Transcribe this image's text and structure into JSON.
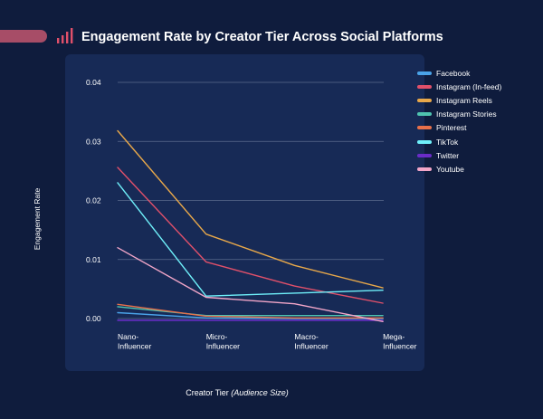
{
  "title": "Engagement Rate by Creator Tier Across Social Platforms",
  "chart_data": {
    "type": "line",
    "title": "Engagement Rate by Creator Tier Across Social Platforms",
    "xlabel": "Creator Tier",
    "xlabel_note": "(Audience Size)",
    "ylabel": "Engagement Rate",
    "categories": [
      "Nano-Influencer",
      "Micro-Influencer",
      "Macro-Influencer",
      "Mega-Influencer"
    ],
    "category_lines": [
      [
        "Nano-",
        "Influencer"
      ],
      [
        "Micro-",
        "Influencer"
      ],
      [
        "Macro-",
        "Influencer"
      ],
      [
        "Mega-",
        "Influencer"
      ]
    ],
    "ylim": [
      0,
      0.04
    ],
    "yticks": [
      0.0,
      0.01,
      0.02,
      0.03,
      0.04
    ],
    "ytick_labels": [
      "0.00",
      "0.01",
      "0.02",
      "0.03",
      "0.04"
    ],
    "grid": true,
    "legend_position": "right",
    "series": [
      {
        "name": "Facebook",
        "color": "#4aa3e8",
        "values": [
          0.001,
          0.0001,
          0.0,
          0.0
        ]
      },
      {
        "name": "Instagram (In-feed)",
        "color": "#e0506a",
        "values": [
          0.0256,
          0.0096,
          0.0055,
          0.0026
        ]
      },
      {
        "name": "Instagram Reels",
        "color": "#e8a84a",
        "values": [
          0.0318,
          0.0143,
          0.009,
          0.0052
        ]
      },
      {
        "name": "Instagram Stories",
        "color": "#4fc4b0",
        "values": [
          0.002,
          0.0005,
          0.0005,
          0.0005
        ]
      },
      {
        "name": "Pinterest",
        "color": "#e8704a",
        "values": [
          0.0024,
          0.0004,
          0.0001,
          0.0001
        ]
      },
      {
        "name": "TikTok",
        "color": "#6ff0fa",
        "values": [
          0.023,
          0.0038,
          0.0043,
          0.0048
        ]
      },
      {
        "name": "Twitter",
        "color": "#6a2cc8",
        "values": [
          -0.0003,
          -0.0003,
          -0.0003,
          -0.0003
        ]
      },
      {
        "name": "Youtube",
        "color": "#f2a6c8",
        "values": [
          0.012,
          0.0036,
          0.0025,
          -0.0005
        ]
      }
    ]
  }
}
